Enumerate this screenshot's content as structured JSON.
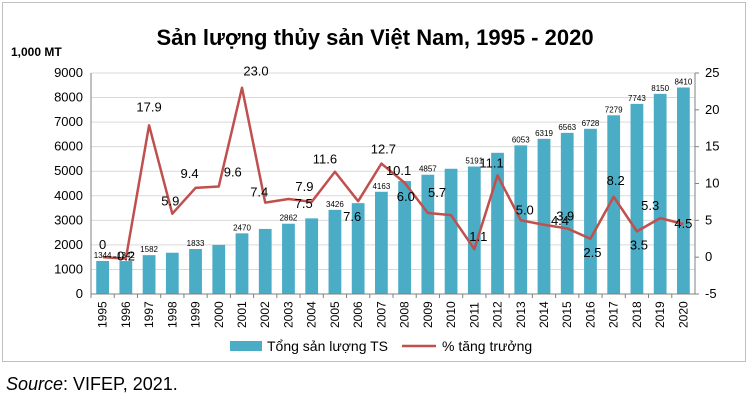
{
  "chart_data": {
    "type": "bar+line",
    "title": "Sản lượng thủy sản Việt Nam, 1995 - 2020",
    "ylabel_left": "1,000 MT",
    "ylim_left": [
      0,
      9000
    ],
    "yticks_left": [
      0,
      1000,
      2000,
      3000,
      4000,
      5000,
      6000,
      7000,
      8000,
      9000
    ],
    "ylim_right": [
      -5,
      25
    ],
    "yticks_right": [
      -5,
      0,
      5,
      10,
      15,
      20,
      25
    ],
    "categories": [
      "1995",
      "1996",
      "1997",
      "1998",
      "1999",
      "2000",
      "2001",
      "2002",
      "2003",
      "2004",
      "2005",
      "2006",
      "2007",
      "2008",
      "2009",
      "2010",
      "2011",
      "2012",
      "2013",
      "2014",
      "2015",
      "2016",
      "2017",
      "2018",
      "2019",
      "2020"
    ],
    "series": [
      {
        "name": "Tổng sản lượng TS",
        "type": "bar",
        "axis": "left",
        "color": "#4bacc6",
        "values": [
          1344,
          1342,
          1582,
          1680,
          1833,
          2000,
          2470,
          2650,
          2862,
          3080,
          3426,
          3700,
          4163,
          4600,
          4857,
          5100,
          5191,
          5750,
          6053,
          6319,
          6563,
          6728,
          7279,
          7743,
          8150,
          8410
        ],
        "labels": [
          "1344",
          "1342",
          "1582",
          "",
          "1833",
          "",
          "2470",
          "",
          "2862",
          "",
          "3426",
          "",
          "4163",
          "",
          "4857",
          "",
          "5191",
          "",
          "6053",
          "6319",
          "6563",
          "6728",
          "7279",
          "7743",
          "8150",
          "8410"
        ]
      },
      {
        "name": "% tăng trưởng",
        "type": "line",
        "axis": "right",
        "color": "#c0504d",
        "values": [
          0,
          -0.2,
          17.9,
          5.9,
          9.4,
          9.6,
          23.0,
          7.4,
          7.9,
          7.5,
          11.6,
          7.6,
          12.7,
          10.1,
          6.0,
          5.7,
          1.1,
          11.1,
          5.0,
          4.4,
          3.9,
          2.5,
          8.2,
          3.5,
          5.3,
          4.5
        ],
        "labels": [
          "0",
          "-0.2",
          "17.9",
          "5.9",
          "9.4",
          "9.6",
          "23.0",
          "7.4",
          "7.9",
          "7.5",
          "11.6",
          "7.6",
          "12.7",
          "10.1",
          "6.0",
          "5.7",
          "1.1",
          "11.1",
          "5.0",
          "4.4",
          "3.9",
          "2.5",
          "8.2",
          "3.5",
          "5.3",
          "4.5"
        ]
      }
    ],
    "legend": {
      "placement": "bottom"
    }
  },
  "source": {
    "label": "Source",
    "text": ": VIFEP, 2021."
  }
}
